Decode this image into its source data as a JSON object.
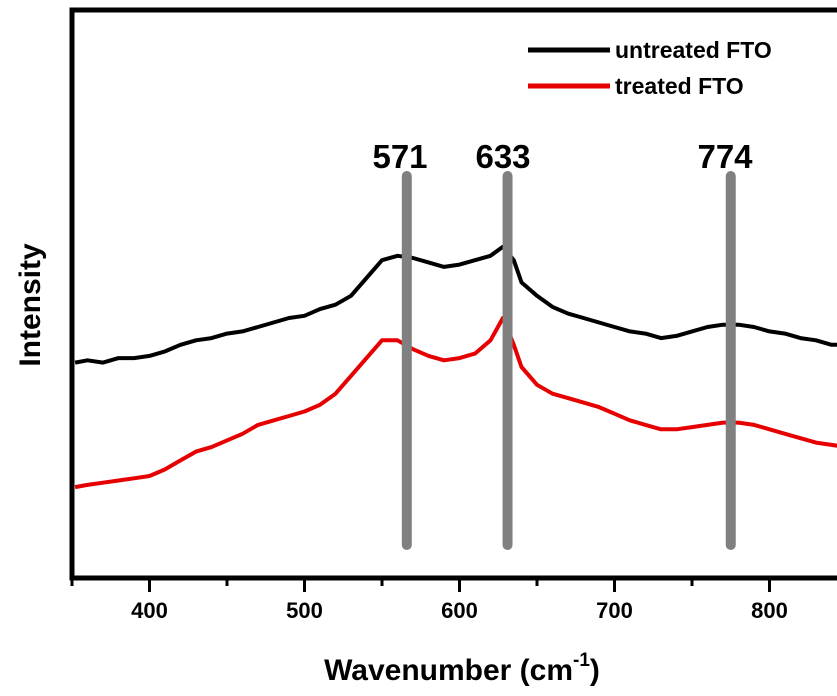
{
  "chart_data": {
    "type": "line",
    "xlabel": "Wavenumber (cm",
    "xlabel_sup": "-1",
    "xlabel_close": ")",
    "ylabel": "Intensity",
    "xlim": [
      350,
      850
    ],
    "ylim": [
      0,
      100
    ],
    "x_ticks": [
      400,
      500,
      600,
      700,
      800
    ],
    "x_tick_labels": [
      "400",
      "500",
      "600",
      "700",
      "800"
    ],
    "legend_position": "top-right",
    "peak_lines": [
      {
        "label": "571",
        "x": 566
      },
      {
        "label": "633",
        "x": 631
      },
      {
        "label": "774",
        "x": 775
      }
    ],
    "series": [
      {
        "name": "untreated FTO",
        "color": "#000000",
        "points": [
          [
            352,
            41
          ],
          [
            360,
            41.5
          ],
          [
            370,
            41
          ],
          [
            380,
            42
          ],
          [
            390,
            42
          ],
          [
            400,
            42.5
          ],
          [
            410,
            43.5
          ],
          [
            420,
            45
          ],
          [
            430,
            46
          ],
          [
            440,
            46.5
          ],
          [
            450,
            47.5
          ],
          [
            460,
            48
          ],
          [
            470,
            49
          ],
          [
            480,
            50
          ],
          [
            490,
            51
          ],
          [
            500,
            51.5
          ],
          [
            510,
            53
          ],
          [
            520,
            54
          ],
          [
            530,
            56
          ],
          [
            540,
            60
          ],
          [
            550,
            64
          ],
          [
            560,
            65
          ],
          [
            570,
            64.5
          ],
          [
            580,
            63.5
          ],
          [
            590,
            62.5
          ],
          [
            600,
            63
          ],
          [
            610,
            64
          ],
          [
            620,
            65
          ],
          [
            628,
            67
          ],
          [
            635,
            64
          ],
          [
            640,
            59
          ],
          [
            650,
            56
          ],
          [
            660,
            53.5
          ],
          [
            670,
            52
          ],
          [
            680,
            51
          ],
          [
            690,
            50
          ],
          [
            700,
            49
          ],
          [
            710,
            48
          ],
          [
            720,
            47.5
          ],
          [
            730,
            46.5
          ],
          [
            740,
            47
          ],
          [
            750,
            48
          ],
          [
            760,
            49
          ],
          [
            770,
            49.5
          ],
          [
            780,
            49.5
          ],
          [
            790,
            49
          ],
          [
            800,
            48
          ],
          [
            810,
            47.5
          ],
          [
            820,
            46.5
          ],
          [
            830,
            46
          ],
          [
            840,
            45
          ],
          [
            850,
            45
          ]
        ]
      },
      {
        "name": "treated FTO",
        "color": "#e60000",
        "points": [
          [
            352,
            13
          ],
          [
            360,
            13.5
          ],
          [
            370,
            14
          ],
          [
            380,
            14.5
          ],
          [
            390,
            15
          ],
          [
            400,
            15.5
          ],
          [
            410,
            17
          ],
          [
            420,
            19
          ],
          [
            430,
            21
          ],
          [
            440,
            22
          ],
          [
            450,
            23.5
          ],
          [
            460,
            25
          ],
          [
            470,
            27
          ],
          [
            480,
            28
          ],
          [
            490,
            29
          ],
          [
            500,
            30
          ],
          [
            510,
            31.5
          ],
          [
            520,
            34
          ],
          [
            530,
            38
          ],
          [
            540,
            42
          ],
          [
            550,
            46
          ],
          [
            560,
            46
          ],
          [
            570,
            44
          ],
          [
            580,
            42.5
          ],
          [
            590,
            41.5
          ],
          [
            600,
            42
          ],
          [
            610,
            43
          ],
          [
            620,
            46
          ],
          [
            628,
            51
          ],
          [
            635,
            45
          ],
          [
            640,
            40
          ],
          [
            650,
            36
          ],
          [
            660,
            34
          ],
          [
            670,
            33
          ],
          [
            680,
            32
          ],
          [
            690,
            31
          ],
          [
            700,
            29.5
          ],
          [
            710,
            28
          ],
          [
            720,
            27
          ],
          [
            730,
            26
          ],
          [
            740,
            26
          ],
          [
            750,
            26.5
          ],
          [
            760,
            27
          ],
          [
            770,
            27.5
          ],
          [
            780,
            27.5
          ],
          [
            790,
            27
          ],
          [
            800,
            26
          ],
          [
            810,
            25
          ],
          [
            820,
            24
          ],
          [
            830,
            23
          ],
          [
            840,
            22.5
          ],
          [
            850,
            22
          ]
        ]
      }
    ]
  }
}
